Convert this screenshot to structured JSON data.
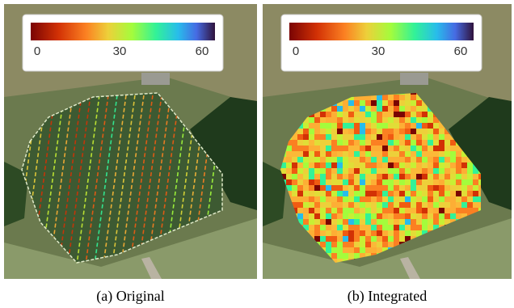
{
  "panels": [
    {
      "caption": "(a) Original",
      "colorbar": {
        "lim": [
          0,
          60
        ],
        "ticks": [
          0,
          30,
          60
        ]
      }
    },
    {
      "caption": "(b) Integrated",
      "colorbar": {
        "lim": [
          0,
          60
        ],
        "ticks": [
          0,
          30,
          60
        ]
      }
    }
  ]
}
